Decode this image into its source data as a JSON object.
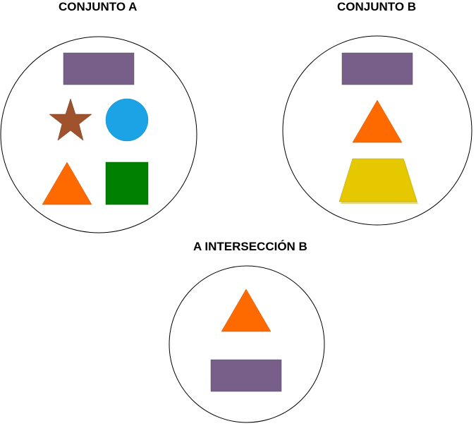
{
  "sets": {
    "a": {
      "title": "CONJUNTO A",
      "elements": [
        "rectangle",
        "star",
        "circle",
        "triangle",
        "square"
      ]
    },
    "b": {
      "title": "CONJUNTO B",
      "elements": [
        "rectangle",
        "triangle",
        "trapezoid"
      ]
    },
    "intersection": {
      "title": "A INTERSECCIÓN B",
      "elements": [
        "triangle",
        "rectangle"
      ]
    }
  },
  "colors": {
    "rectangle": "#775f89",
    "star": "#a0522d",
    "circle": "#1ca3e6",
    "triangle": "#ff6a00",
    "square": "#008000",
    "trapezoid": "#e5c800",
    "outline": "#000000",
    "set_fill": "#ffffff"
  }
}
